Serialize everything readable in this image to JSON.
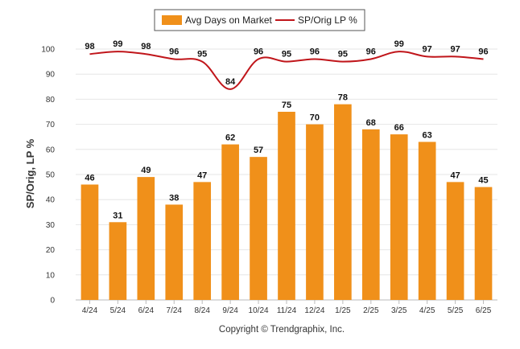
{
  "chart_data": {
    "type": "bar",
    "categories": [
      "4/24",
      "5/24",
      "6/24",
      "7/24",
      "8/24",
      "9/24",
      "10/24",
      "11/24",
      "12/24",
      "1/25",
      "2/25",
      "3/25",
      "4/25",
      "5/25",
      "6/25"
    ],
    "series": [
      {
        "name": "Avg Days on Market",
        "kind": "bar",
        "color": "#f0901a",
        "values": [
          46,
          31,
          49,
          38,
          47,
          62,
          57,
          75,
          70,
          78,
          68,
          66,
          63,
          47,
          45
        ]
      },
      {
        "name": "SP/Orig LP %",
        "kind": "line",
        "color": "#c0151a",
        "values": [
          98,
          99,
          98,
          96,
          95,
          84,
          96,
          95,
          96,
          95,
          96,
          99,
          97,
          97,
          96
        ]
      }
    ],
    "ylabel": "SP/Orig, LP %",
    "ylim": [
      0,
      100
    ],
    "yticks": [
      0,
      10,
      20,
      30,
      40,
      50,
      60,
      70,
      80,
      90,
      100
    ],
    "grid": true,
    "legend_position": "top-center",
    "data_labels": true
  },
  "footer": {
    "copyright": "Copyright © Trendgraphix, Inc."
  }
}
